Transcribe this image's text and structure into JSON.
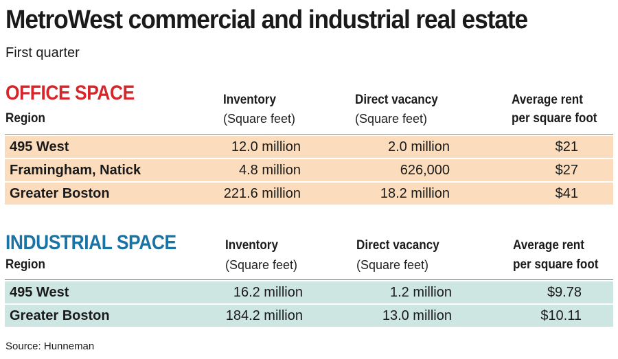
{
  "title": "MetroWest commercial and industrial real estate",
  "subtitle": "First quarter",
  "office": {
    "section_title": "OFFICE SPACE",
    "headers": {
      "region": "Region",
      "inventory": "Inventory",
      "inventory_unit": "(Square feet)",
      "vacancy": "Direct vacancy",
      "vacancy_unit": "(Square feet)",
      "rent_line1": "Average rent",
      "rent_line2": "per square foot"
    },
    "rows": [
      {
        "region": "495 West",
        "inventory": "12.0 million",
        "vacancy": "2.0 million",
        "rent": "$21"
      },
      {
        "region": "Framingham, Natick",
        "inventory": "4.8 million",
        "vacancy": "626,000",
        "rent": "$27"
      },
      {
        "region": "Greater Boston",
        "inventory": "221.6 million",
        "vacancy": "18.2 million",
        "rent": "$41"
      }
    ]
  },
  "industrial": {
    "section_title": "INDUSTRIAL SPACE",
    "headers": {
      "region": "Region",
      "inventory": "Inventory",
      "inventory_unit": "(Square feet)",
      "vacancy": "Direct vacancy",
      "vacancy_unit": "(Square feet)",
      "rent_line1": "Average rent",
      "rent_line2": "per square foot"
    },
    "rows": [
      {
        "region": "495 West",
        "inventory": "16.2 million",
        "vacancy": "1.2 million",
        "rent": "$9.78"
      },
      {
        "region": "Greater Boston",
        "inventory": "184.2 million",
        "vacancy": "13.0 million",
        "rent": "$10.11"
      }
    ]
  },
  "source": "Source: Hunneman",
  "colors": {
    "office_accent": "#d4262b",
    "industrial_accent": "#1a73a5",
    "office_row": "#fbdcbd",
    "industrial_row": "#cde6e2"
  }
}
